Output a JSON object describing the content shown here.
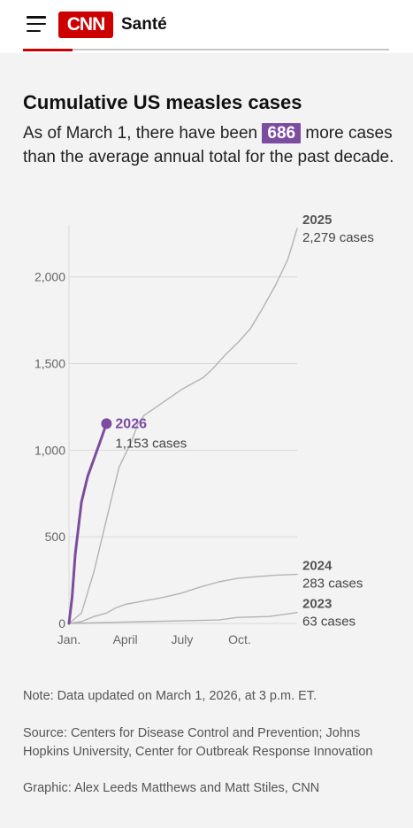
{
  "header": {
    "logo_text": "CNN",
    "section": "Santé"
  },
  "title": "Cumulative US measles cases",
  "subtitle": {
    "before": "As of March 1, there have been ",
    "highlight": "686",
    "after": " more cases than the average annual total for the past decade."
  },
  "colors": {
    "accent": "#7b4ca0",
    "brand": "#cc0000",
    "history": "#b3b3b3"
  },
  "chart_data": {
    "type": "line",
    "ylim": [
      0,
      2300
    ],
    "xlim": [
      0,
      365
    ],
    "yticks": [
      {
        "value": 0,
        "label": "0"
      },
      {
        "value": 500,
        "label": "500"
      },
      {
        "value": 1000,
        "label": "1,000"
      },
      {
        "value": 1500,
        "label": "1,500"
      },
      {
        "value": 2000,
        "label": "2,000"
      }
    ],
    "xticks": [
      {
        "value": 0,
        "label": "Jan."
      },
      {
        "value": 90,
        "label": "April"
      },
      {
        "value": 181,
        "label": "July"
      },
      {
        "value": 273,
        "label": "Oct."
      }
    ],
    "grid": true,
    "series": [
      {
        "name": "2023",
        "total_label": "63 cases",
        "highlight": false,
        "x": [
          0,
          60,
          120,
          180,
          240,
          270,
          320,
          365
        ],
        "y": [
          0,
          5,
          10,
          15,
          20,
          35,
          40,
          63
        ]
      },
      {
        "name": "2024",
        "total_label": "283 cases",
        "highlight": false,
        "x": [
          0,
          20,
          40,
          60,
          75,
          90,
          120,
          150,
          180,
          210,
          240,
          270,
          300,
          330,
          365
        ],
        "y": [
          0,
          10,
          40,
          60,
          90,
          110,
          130,
          150,
          175,
          210,
          240,
          260,
          270,
          278,
          283
        ]
      },
      {
        "name": "2025",
        "total_label": "2,279 cases",
        "highlight": false,
        "x": [
          0,
          20,
          40,
          60,
          80,
          100,
          110,
          120,
          140,
          160,
          180,
          200,
          215,
          230,
          250,
          270,
          290,
          310,
          330,
          350,
          365
        ],
        "y": [
          0,
          60,
          300,
          600,
          900,
          1050,
          1150,
          1200,
          1250,
          1300,
          1350,
          1390,
          1420,
          1470,
          1550,
          1620,
          1700,
          1820,
          1950,
          2100,
          2279
        ]
      },
      {
        "name": "2026",
        "total_label": "1,153 cases",
        "highlight": true,
        "x": [
          0,
          5,
          10,
          20,
          30,
          40,
          50,
          60
        ],
        "y": [
          0,
          150,
          400,
          700,
          850,
          950,
          1050,
          1153
        ]
      }
    ]
  },
  "footer": {
    "note": "Note: Data updated on March 1, 2026, at 3 p.m. ET.",
    "source": "Source: Centers for Disease Control and Prevention; Johns Hopkins University, Center for Outbreak Response Innovation",
    "credit": "Graphic: Alex Leeds Matthews and Matt Stiles, CNN"
  }
}
